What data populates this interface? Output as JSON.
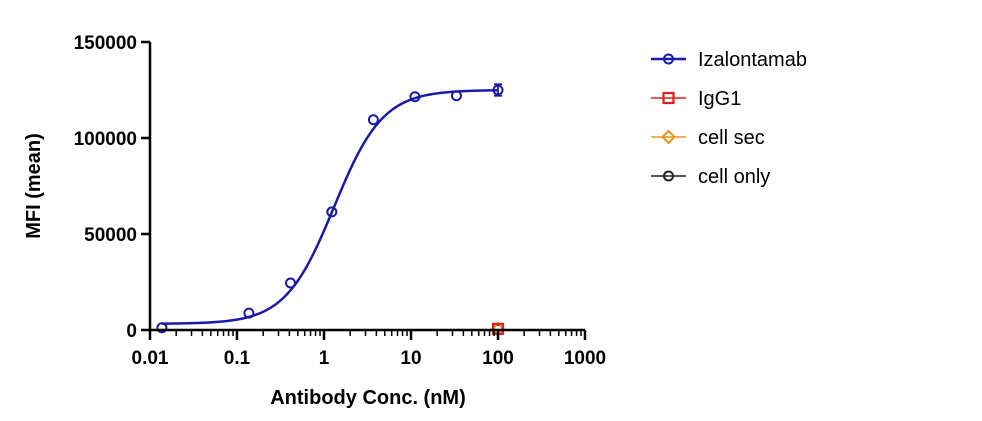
{
  "chart_data": {
    "type": "scatter",
    "title": "",
    "xlabel": "Antibody Conc. (nM)",
    "ylabel": "MFI (mean)",
    "xscale": "log",
    "xlim": [
      0.01,
      1000
    ],
    "ylim": [
      0,
      150000
    ],
    "x_ticks": [
      0.01,
      0.1,
      1,
      10,
      100,
      1000
    ],
    "x_tick_labels": [
      "0.01",
      "0.1",
      "1",
      "10",
      "100",
      "1000"
    ],
    "y_ticks": [
      0,
      50000,
      100000,
      150000
    ],
    "y_tick_labels": [
      "0",
      "50000",
      "100000",
      "150000"
    ],
    "grid": false,
    "legend_position": "right",
    "series": [
      {
        "name": "Izalontamab",
        "color": "#1a1aa6",
        "marker": "circle",
        "fit_curve": true,
        "x": [
          0.0137,
          0.137,
          0.412,
          1.23,
          3.7,
          11.1,
          33.3,
          100
        ],
        "y": [
          1200,
          8800,
          24500,
          61500,
          109500,
          121500,
          122000,
          125000
        ],
        "error": [
          0,
          0,
          0,
          0,
          0,
          0,
          0,
          3000
        ]
      },
      {
        "name": "IgG1",
        "color": "#e02020",
        "marker": "square",
        "x": [
          100
        ],
        "y": [
          600
        ]
      },
      {
        "name": "cell sec",
        "color": "#e8941a",
        "marker": "diamond",
        "x": [
          100
        ],
        "y": [
          400
        ]
      },
      {
        "name": "cell only",
        "color": "#222222",
        "marker": "circle",
        "x": [
          100
        ],
        "y": [
          300
        ]
      }
    ]
  }
}
